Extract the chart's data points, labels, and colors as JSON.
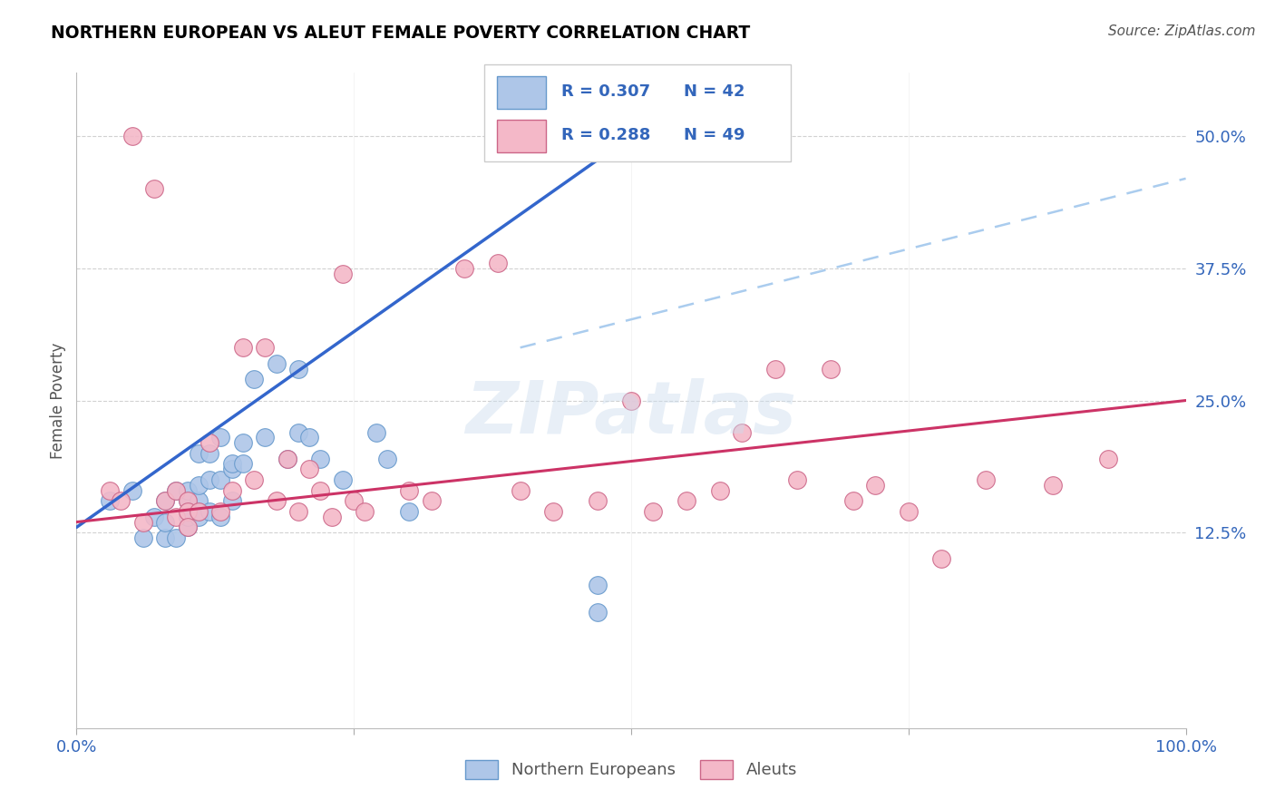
{
  "title": "NORTHERN EUROPEAN VS ALEUT FEMALE POVERTY CORRELATION CHART",
  "source": "Source: ZipAtlas.com",
  "ylabel": "Female Poverty",
  "watermark": "ZIPatlas",
  "blue_r": "R = 0.307",
  "blue_n": "N = 42",
  "pink_r": "R = 0.288",
  "pink_n": "N = 49",
  "xlim": [
    0,
    1.0
  ],
  "ylim": [
    -0.06,
    0.56
  ],
  "blue_color": "#aec6e8",
  "blue_edge_color": "#6699cc",
  "pink_color": "#f4b8c8",
  "pink_edge_color": "#cc6688",
  "blue_line_color": "#3366cc",
  "pink_line_color": "#cc3366",
  "dashed_line_color": "#aaccee",
  "grid_color": "#cccccc",
  "blue_data_x": [
    0.03,
    0.05,
    0.06,
    0.07,
    0.08,
    0.08,
    0.08,
    0.09,
    0.09,
    0.1,
    0.1,
    0.1,
    0.1,
    0.11,
    0.11,
    0.11,
    0.11,
    0.12,
    0.12,
    0.12,
    0.13,
    0.13,
    0.13,
    0.14,
    0.14,
    0.14,
    0.15,
    0.15,
    0.16,
    0.17,
    0.18,
    0.19,
    0.2,
    0.2,
    0.21,
    0.22,
    0.24,
    0.27,
    0.28,
    0.3,
    0.47,
    0.47
  ],
  "blue_data_y": [
    0.155,
    0.165,
    0.12,
    0.14,
    0.12,
    0.135,
    0.155,
    0.12,
    0.165,
    0.13,
    0.14,
    0.155,
    0.165,
    0.14,
    0.155,
    0.17,
    0.2,
    0.145,
    0.175,
    0.2,
    0.14,
    0.175,
    0.215,
    0.155,
    0.185,
    0.19,
    0.19,
    0.21,
    0.27,
    0.215,
    0.285,
    0.195,
    0.22,
    0.28,
    0.215,
    0.195,
    0.175,
    0.22,
    0.195,
    0.145,
    0.05,
    0.075
  ],
  "pink_data_x": [
    0.03,
    0.04,
    0.05,
    0.06,
    0.07,
    0.08,
    0.09,
    0.09,
    0.1,
    0.1,
    0.1,
    0.11,
    0.12,
    0.13,
    0.14,
    0.15,
    0.16,
    0.17,
    0.18,
    0.19,
    0.2,
    0.21,
    0.22,
    0.23,
    0.24,
    0.25,
    0.26,
    0.3,
    0.32,
    0.35,
    0.38,
    0.4,
    0.43,
    0.47,
    0.5,
    0.52,
    0.55,
    0.58,
    0.6,
    0.63,
    0.65,
    0.68,
    0.7,
    0.72,
    0.75,
    0.78,
    0.82,
    0.88,
    0.93
  ],
  "pink_data_y": [
    0.165,
    0.155,
    0.5,
    0.135,
    0.45,
    0.155,
    0.165,
    0.14,
    0.155,
    0.145,
    0.13,
    0.145,
    0.21,
    0.145,
    0.165,
    0.3,
    0.175,
    0.3,
    0.155,
    0.195,
    0.145,
    0.185,
    0.165,
    0.14,
    0.37,
    0.155,
    0.145,
    0.165,
    0.155,
    0.375,
    0.38,
    0.165,
    0.145,
    0.155,
    0.25,
    0.145,
    0.155,
    0.165,
    0.22,
    0.28,
    0.175,
    0.28,
    0.155,
    0.17,
    0.145,
    0.1,
    0.175,
    0.17,
    0.195
  ],
  "blue_line_x0": 0.0,
  "blue_line_y0": 0.13,
  "blue_line_x1": 0.5,
  "blue_line_y1": 0.5,
  "pink_line_x0": 0.0,
  "pink_line_y0": 0.135,
  "pink_line_x1": 1.0,
  "pink_line_y1": 0.25,
  "dash_line_x0": 0.4,
  "dash_line_y0": 0.3,
  "dash_line_x1": 1.0,
  "dash_line_y1": 0.46
}
